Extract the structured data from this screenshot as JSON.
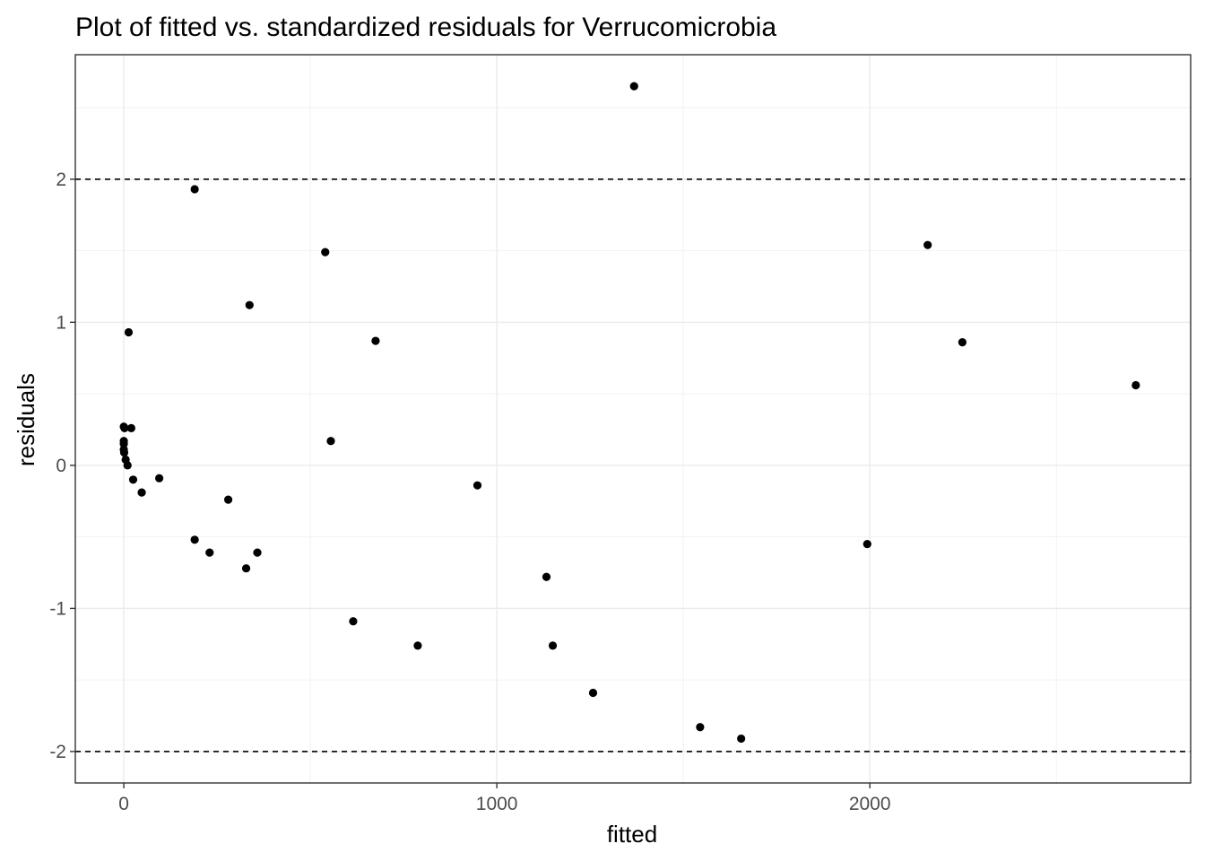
{
  "chart_data": {
    "type": "scatter",
    "title": "Plot of fitted vs. standardized residuals for Verrucomicrobia",
    "xlabel": "fitted",
    "ylabel": "residuals",
    "xlim": [
      -130,
      2860
    ],
    "ylim": [
      -2.22,
      2.87
    ],
    "x_ticks": [
      0,
      1000,
      2000
    ],
    "x_tick_labels": [
      "0",
      "1000",
      "2000"
    ],
    "y_ticks": [
      -2,
      -1,
      0,
      1,
      2
    ],
    "y_tick_labels": [
      "-2",
      "-1",
      "0",
      "1",
      "2"
    ],
    "reference_lines": [
      2,
      -2
    ],
    "grid": true,
    "points": [
      {
        "x": 0,
        "y": 0.27
      },
      {
        "x": 2,
        "y": 0.26
      },
      {
        "x": 0,
        "y": 0.17
      },
      {
        "x": 0,
        "y": 0.15
      },
      {
        "x": 0,
        "y": 0.11
      },
      {
        "x": 1,
        "y": 0.09
      },
      {
        "x": 5,
        "y": 0.04
      },
      {
        "x": 10,
        "y": 0.0
      },
      {
        "x": 13,
        "y": 0.93
      },
      {
        "x": 20,
        "y": 0.26
      },
      {
        "x": 25,
        "y": -0.1
      },
      {
        "x": 48,
        "y": -0.19
      },
      {
        "x": 95,
        "y": -0.09
      },
      {
        "x": 190,
        "y": 1.93
      },
      {
        "x": 190,
        "y": -0.52
      },
      {
        "x": 230,
        "y": -0.61
      },
      {
        "x": 280,
        "y": -0.24
      },
      {
        "x": 328,
        "y": -0.72
      },
      {
        "x": 337,
        "y": 1.12
      },
      {
        "x": 358,
        "y": -0.61
      },
      {
        "x": 540,
        "y": 1.49
      },
      {
        "x": 555,
        "y": 0.17
      },
      {
        "x": 615,
        "y": -1.09
      },
      {
        "x": 675,
        "y": 0.87
      },
      {
        "x": 788,
        "y": -1.26
      },
      {
        "x": 948,
        "y": -0.14
      },
      {
        "x": 1133,
        "y": -0.78
      },
      {
        "x": 1150,
        "y": -1.26
      },
      {
        "x": 1258,
        "y": -1.59
      },
      {
        "x": 1368,
        "y": 2.65
      },
      {
        "x": 1545,
        "y": -1.83
      },
      {
        "x": 1655,
        "y": -1.91
      },
      {
        "x": 1993,
        "y": -0.55
      },
      {
        "x": 2155,
        "y": 1.54
      },
      {
        "x": 2248,
        "y": 0.86
      },
      {
        "x": 2713,
        "y": 0.56
      }
    ]
  }
}
